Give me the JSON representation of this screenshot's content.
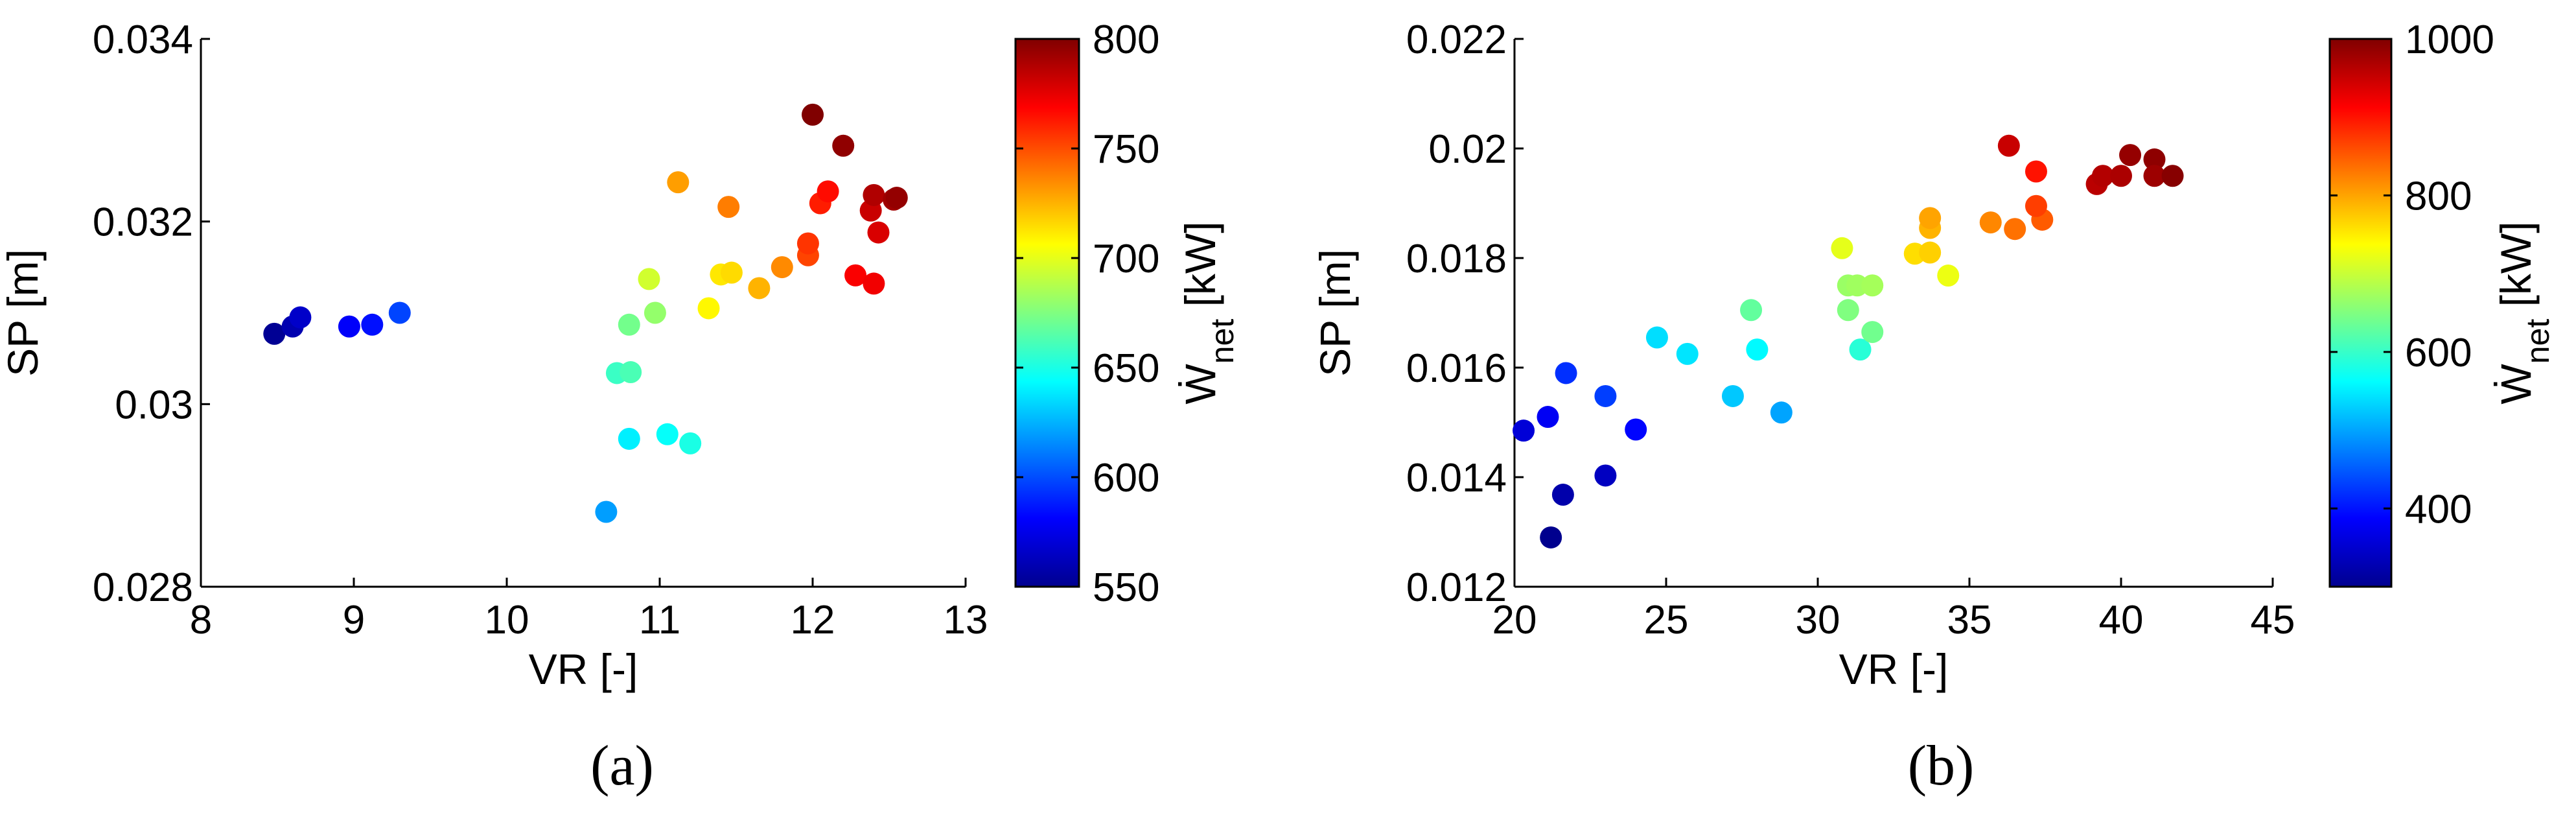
{
  "colors": {
    "colormap": "jet",
    "axis": "#000000",
    "background": "#ffffff"
  },
  "panel_a_label": "(a)",
  "panel_b_label": "(b)",
  "chart_data": [
    {
      "type": "scatter",
      "panel": "(a)",
      "xlabel": "VR [-]",
      "ylabel": "SP [m]",
      "xlim": [
        8,
        13
      ],
      "ylim": [
        0.028,
        0.034
      ],
      "xticks": [
        "8",
        "9",
        "10",
        "11",
        "12",
        "13"
      ],
      "yticks": [
        "0.028",
        "0.03",
        "0.032",
        "0.034"
      ],
      "grid": false,
      "colorbar": {
        "label_main": "Ẇ",
        "label_sub": "net",
        "label_unit": " [kW]",
        "range": [
          550,
          800
        ],
        "ticks": [
          "550",
          "600",
          "650",
          "700",
          "750",
          "800"
        ]
      },
      "points": [
        {
          "x": 8.48,
          "y": 0.03077,
          "c": 555
        },
        {
          "x": 8.6,
          "y": 0.03085,
          "c": 562
        },
        {
          "x": 8.65,
          "y": 0.03095,
          "c": 568
        },
        {
          "x": 8.97,
          "y": 0.03085,
          "c": 580
        },
        {
          "x": 9.12,
          "y": 0.03087,
          "c": 585
        },
        {
          "x": 9.3,
          "y": 0.031,
          "c": 598
        },
        {
          "x": 10.65,
          "y": 0.02882,
          "c": 620
        },
        {
          "x": 10.8,
          "y": 0.02962,
          "c": 640
        },
        {
          "x": 11.05,
          "y": 0.02967,
          "c": 645
        },
        {
          "x": 11.2,
          "y": 0.02957,
          "c": 650
        },
        {
          "x": 10.72,
          "y": 0.03034,
          "c": 658
        },
        {
          "x": 10.81,
          "y": 0.03035,
          "c": 662
        },
        {
          "x": 10.8,
          "y": 0.03087,
          "c": 672
        },
        {
          "x": 10.97,
          "y": 0.031,
          "c": 680
        },
        {
          "x": 10.93,
          "y": 0.03137,
          "c": 695
        },
        {
          "x": 11.32,
          "y": 0.03105,
          "c": 708
        },
        {
          "x": 11.4,
          "y": 0.03142,
          "c": 712
        },
        {
          "x": 11.47,
          "y": 0.03144,
          "c": 715
        },
        {
          "x": 11.65,
          "y": 0.03127,
          "c": 725
        },
        {
          "x": 11.8,
          "y": 0.0315,
          "c": 735
        },
        {
          "x": 11.12,
          "y": 0.03243,
          "c": 730
        },
        {
          "x": 11.45,
          "y": 0.03216,
          "c": 738
        },
        {
          "x": 11.97,
          "y": 0.03163,
          "c": 752
        },
        {
          "x": 11.97,
          "y": 0.03176,
          "c": 756
        },
        {
          "x": 12.05,
          "y": 0.0322,
          "c": 762
        },
        {
          "x": 12.1,
          "y": 0.03233,
          "c": 766
        },
        {
          "x": 12.28,
          "y": 0.03141,
          "c": 770
        },
        {
          "x": 12.4,
          "y": 0.03132,
          "c": 772
        },
        {
          "x": 12.43,
          "y": 0.03188,
          "c": 778
        },
        {
          "x": 12.38,
          "y": 0.03212,
          "c": 782
        },
        {
          "x": 12.4,
          "y": 0.03229,
          "c": 788
        },
        {
          "x": 12.53,
          "y": 0.03224,
          "c": 792
        },
        {
          "x": 12.55,
          "y": 0.03226,
          "c": 795
        },
        {
          "x": 12.2,
          "y": 0.03283,
          "c": 796
        },
        {
          "x": 12.0,
          "y": 0.03317,
          "c": 800
        }
      ]
    },
    {
      "type": "scatter",
      "panel": "(b)",
      "xlabel": "VR [-]",
      "ylabel": "SP [m]",
      "xlim": [
        20,
        45
      ],
      "ylim": [
        0.012,
        0.022
      ],
      "xticks": [
        "20",
        "25",
        "30",
        "35",
        "40",
        "45"
      ],
      "yticks": [
        "0.012",
        "0.014",
        "0.016",
        "0.018",
        "0.02",
        "0.022"
      ],
      "grid": false,
      "colorbar": {
        "label_main": "Ẇ",
        "label_sub": "net",
        "label_unit": " [kW]",
        "range": [
          300,
          1000
        ],
        "ticks": [
          "400",
          "600",
          "800",
          "1000"
        ]
      },
      "points": [
        {
          "x": 21.2,
          "y": 0.0129,
          "c": 310
        },
        {
          "x": 21.6,
          "y": 0.01368,
          "c": 330
        },
        {
          "x": 23.0,
          "y": 0.01403,
          "c": 345
        },
        {
          "x": 20.3,
          "y": 0.01485,
          "c": 360
        },
        {
          "x": 21.1,
          "y": 0.0151,
          "c": 380
        },
        {
          "x": 24.0,
          "y": 0.01487,
          "c": 390
        },
        {
          "x": 21.7,
          "y": 0.0159,
          "c": 420
        },
        {
          "x": 23.0,
          "y": 0.01548,
          "c": 430
        },
        {
          "x": 28.8,
          "y": 0.01518,
          "c": 500
        },
        {
          "x": 27.2,
          "y": 0.01548,
          "c": 525
        },
        {
          "x": 24.7,
          "y": 0.01655,
          "c": 540
        },
        {
          "x": 25.7,
          "y": 0.01625,
          "c": 545
        },
        {
          "x": 28.0,
          "y": 0.01633,
          "c": 560
        },
        {
          "x": 31.4,
          "y": 0.01633,
          "c": 590
        },
        {
          "x": 27.8,
          "y": 0.01705,
          "c": 630
        },
        {
          "x": 31.8,
          "y": 0.01665,
          "c": 640
        },
        {
          "x": 31.0,
          "y": 0.01705,
          "c": 650
        },
        {
          "x": 31.0,
          "y": 0.0175,
          "c": 668
        },
        {
          "x": 31.3,
          "y": 0.0175,
          "c": 672
        },
        {
          "x": 31.8,
          "y": 0.0175,
          "c": 676
        },
        {
          "x": 30.8,
          "y": 0.01818,
          "c": 720
        },
        {
          "x": 34.3,
          "y": 0.01768,
          "c": 725
        },
        {
          "x": 33.2,
          "y": 0.01808,
          "c": 760
        },
        {
          "x": 33.7,
          "y": 0.0181,
          "c": 770
        },
        {
          "x": 33.7,
          "y": 0.01855,
          "c": 790
        },
        {
          "x": 33.7,
          "y": 0.01873,
          "c": 800
        },
        {
          "x": 35.7,
          "y": 0.01865,
          "c": 820
        },
        {
          "x": 36.5,
          "y": 0.01853,
          "c": 835
        },
        {
          "x": 37.4,
          "y": 0.0187,
          "c": 850
        },
        {
          "x": 37.2,
          "y": 0.01895,
          "c": 870
        },
        {
          "x": 37.2,
          "y": 0.01958,
          "c": 900
        },
        {
          "x": 36.3,
          "y": 0.02005,
          "c": 950
        },
        {
          "x": 39.2,
          "y": 0.01935,
          "c": 960
        },
        {
          "x": 39.4,
          "y": 0.0195,
          "c": 965
        },
        {
          "x": 40.0,
          "y": 0.0195,
          "c": 970
        },
        {
          "x": 40.3,
          "y": 0.01988,
          "c": 985
        },
        {
          "x": 41.1,
          "y": 0.0198,
          "c": 990
        },
        {
          "x": 41.1,
          "y": 0.0195,
          "c": 980
        },
        {
          "x": 41.7,
          "y": 0.0195,
          "c": 995
        }
      ]
    }
  ]
}
